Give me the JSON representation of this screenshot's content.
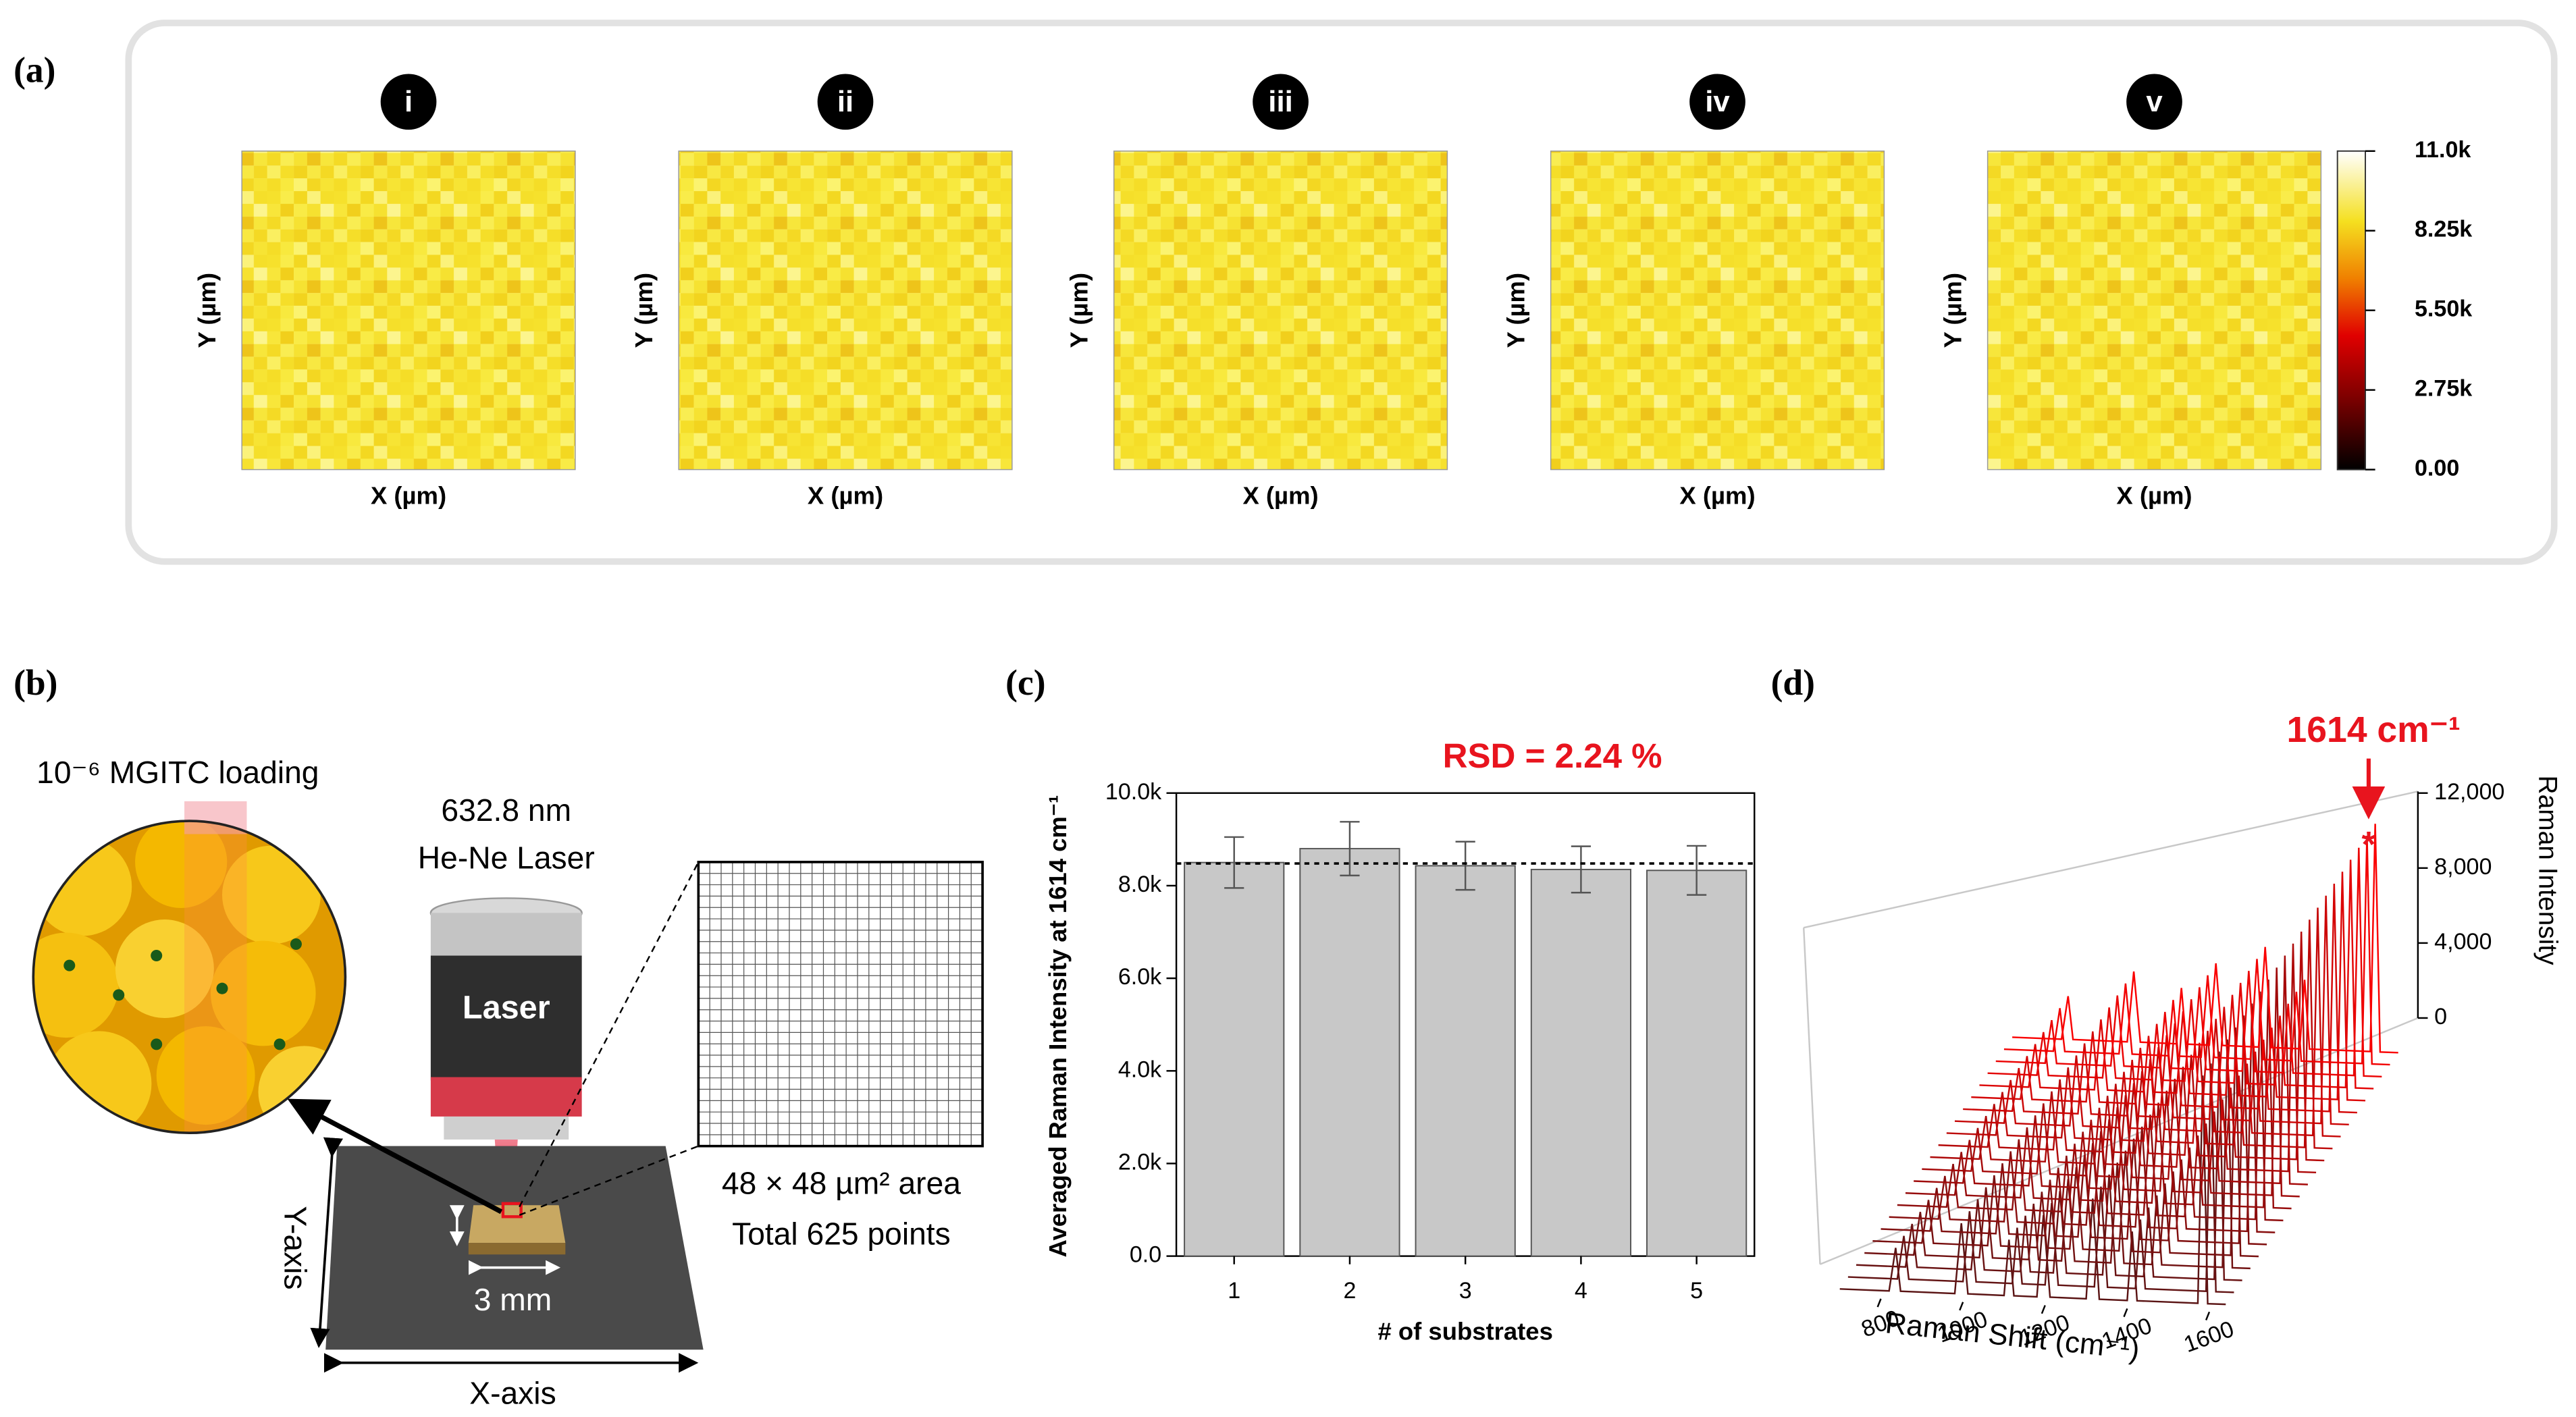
{
  "panels": {
    "a": "(a)",
    "b": "(b)",
    "c": "(c)",
    "d": "(d)"
  },
  "maps": {
    "labels": [
      "i",
      "ii",
      "iii",
      "iv",
      "v"
    ],
    "xlabel": "X (µm)",
    "ylabel": "Y (µm)",
    "colorbar": {
      "lim": [
        0,
        11000
      ],
      "ticks": [
        {
          "value": 11000,
          "label": "11.0k"
        },
        {
          "value": 8250,
          "label": "8.25k"
        },
        {
          "value": 5500,
          "label": "5.50k"
        },
        {
          "value": 2750,
          "label": "2.75k"
        },
        {
          "value": 0,
          "label": "0.00"
        }
      ]
    }
  },
  "schematic": {
    "loading": "10⁻⁶ MGITC loading",
    "laser_wavelength": "632.8 nm",
    "laser_type": "He-Ne Laser",
    "laser": "Laser",
    "area": "48 × 48 µm² area",
    "points": "Total 625 points",
    "size": "3 mm",
    "xaxis": "X-axis",
    "yaxis": "Y-axis"
  },
  "chart_data": [
    {
      "type": "bar",
      "categories": [
        "1",
        "2",
        "3",
        "4",
        "5"
      ],
      "values": [
        8500,
        8800,
        8430,
        8350,
        8330
      ],
      "errors": [
        550,
        580,
        520,
        500,
        530
      ],
      "color": "#c8c8c8",
      "reference_line": 8480,
      "annotation": "RSD = 2.24 %",
      "xlabel": "# of substrates",
      "ylabel": "Averaged Raman Intensity at 1614 cm⁻¹",
      "ylim": [
        0,
        10000
      ],
      "yticks": [
        {
          "value": 0,
          "label": "0.0"
        },
        {
          "value": 2000,
          "label": "2.0k"
        },
        {
          "value": 4000,
          "label": "4.0k"
        },
        {
          "value": 6000,
          "label": "6.0k"
        },
        {
          "value": 8000,
          "label": "8.0k"
        },
        {
          "value": 10000,
          "label": "10.0k"
        }
      ]
    },
    {
      "type": "waterfall3d",
      "xlabel": "Raman Shift (cm⁻¹)",
      "zlabel": "Raman Intensity",
      "annotation": "1614 cm⁻¹",
      "marker": "*",
      "xlim": [
        700,
        1700
      ],
      "xticks": [
        800,
        1000,
        1200,
        1400,
        1600
      ],
      "zlim": [
        0,
        12000
      ],
      "zticks": [
        0,
        {
          "value": 4000,
          "label": "4,000"
        },
        {
          "value": 8000,
          "label": "8,000"
        },
        {
          "value": 12000,
          "label": "12,000"
        }
      ]
    }
  ]
}
